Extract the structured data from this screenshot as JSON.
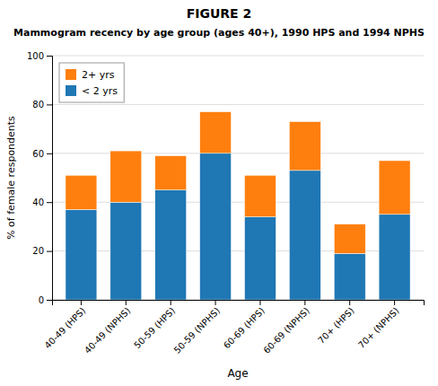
{
  "chart_data": {
    "type": "bar",
    "stacked": true,
    "title": "FIGURE 2",
    "subtitle": "Mammogram recency by age group (ages 40+), 1990 HPS and 1994 NPHS",
    "x_label": "Age",
    "y_label": "% of female respondents",
    "categories": [
      "40-49 (HPS)",
      "40-49 (NPHS)",
      "50-59 (HPS)",
      "50-59 (NPHS)",
      "60-69 (HPS)",
      "60-69 (NPHS)",
      "70+ (HPS)",
      "70+ (NPHS)"
    ],
    "series": [
      {
        "name": "< 2 yrs",
        "values": [
          37,
          40,
          45,
          60,
          34,
          53,
          19,
          35
        ]
      },
      {
        "name": "2+ yrs",
        "values": [
          14,
          21,
          14,
          17,
          17,
          20,
          12,
          22
        ]
      }
    ],
    "ylim": [
      0,
      100
    ],
    "yticks": [
      0,
      20,
      40,
      60,
      80,
      100
    ],
    "grid": true,
    "legend": "upper left"
  }
}
